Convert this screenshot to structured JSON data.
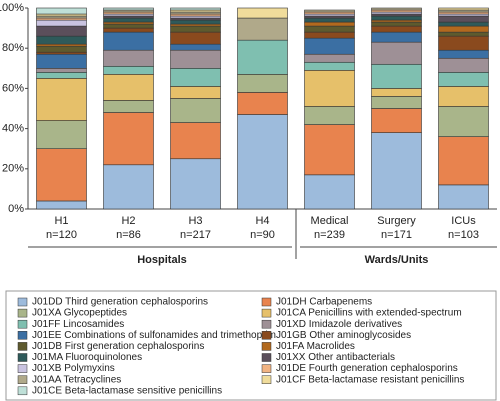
{
  "chart_data": {
    "type": "stacked_bar",
    "categories": [
      "H1",
      "H2",
      "H3",
      "H4",
      "Medical",
      "Surgery",
      "ICUs"
    ],
    "category_counts": [
      "n=120",
      "n=86",
      "n=217",
      "n=90",
      "n=239",
      "n=171",
      "n=103"
    ],
    "groups": [
      "Hospitals",
      "Wards/Units"
    ],
    "ylim": [
      0,
      100
    ],
    "yticks": [
      {
        "value": 0,
        "label": "0%"
      },
      {
        "value": 20,
        "label": "20%"
      },
      {
        "value": 40,
        "label": "40%"
      },
      {
        "value": 60,
        "label": "60%"
      },
      {
        "value": 80,
        "label": "80%"
      },
      {
        "value": 100,
        "label": "100%"
      }
    ],
    "series": [
      {
        "name": "J01DD Third generation cephalosporins",
        "color": "#9dbbdc",
        "values": [
          4,
          22,
          25,
          47,
          17,
          38,
          12
        ]
      },
      {
        "name": "J01DH Carbapenems",
        "color": "#e8834e",
        "values": [
          26,
          26,
          18,
          11,
          25,
          12,
          24
        ]
      },
      {
        "name": "J01XA Glycopeptides",
        "color": "#a9b58a",
        "values": [
          14,
          6,
          12,
          9,
          9,
          6,
          15
        ]
      },
      {
        "name": "J01CA Penicillins with extended-spectrum",
        "color": "#e6c06a",
        "values": [
          21,
          13,
          6,
          0,
          18,
          4,
          10
        ]
      },
      {
        "name": "J01FF Lincosamides",
        "color": "#7fbfb0",
        "values": [
          3,
          4,
          9,
          17,
          4,
          12,
          7
        ]
      },
      {
        "name": "J01XD Imidazole derivatives",
        "color": "#9e9096",
        "values": [
          2,
          8,
          9,
          0,
          4,
          11,
          7
        ]
      },
      {
        "name": "J01EE Combinations of sulfonamides and trimethoprim",
        "color": "#3b6fa3",
        "values": [
          7,
          9,
          3,
          0,
          8,
          5,
          4
        ]
      },
      {
        "name": "J01GB Other aminoglycosides",
        "color": "#8a4a1e",
        "values": [
          1,
          2,
          6,
          0,
          3,
          3,
          7
        ]
      },
      {
        "name": "J01DB First generation cephalosporins",
        "color": "#5e5a2e",
        "values": [
          3,
          2,
          3,
          0,
          3,
          2,
          2
        ]
      },
      {
        "name": "J01FA Macrolides",
        "color": "#b2691e",
        "values": [
          1,
          1,
          1,
          0,
          2,
          1,
          3
        ]
      },
      {
        "name": "J01MA Fluoroquinolones",
        "color": "#2e5a5a",
        "values": [
          4,
          2,
          2,
          0,
          2,
          2,
          2
        ]
      },
      {
        "name": "J01XX Other antibacterials",
        "color": "#5b4f5b",
        "values": [
          5,
          1,
          1,
          0,
          1,
          1,
          3
        ]
      },
      {
        "name": "J01XB Polymyxins",
        "color": "#c9c3e0",
        "values": [
          3,
          1,
          1,
          0,
          1,
          1,
          1
        ]
      },
      {
        "name": "J01DE Fourth generation cephalosporins",
        "color": "#f2b483",
        "values": [
          1,
          1,
          1,
          0,
          1,
          1,
          1
        ]
      },
      {
        "name": "J01AA Tetracyclines",
        "color": "#b0a98a",
        "values": [
          1,
          1,
          1,
          11,
          1,
          1,
          1
        ]
      },
      {
        "name": "J01CF Beta-lactamase resistant penicillins",
        "color": "#f0dc9b",
        "values": [
          1,
          0,
          1,
          5,
          0,
          0,
          1
        ]
      },
      {
        "name": "J01CE Beta-lactamase sensitive penicillins",
        "color": "#bfe0d8",
        "values": [
          3,
          1,
          1,
          0,
          0,
          0,
          0
        ]
      }
    ]
  }
}
